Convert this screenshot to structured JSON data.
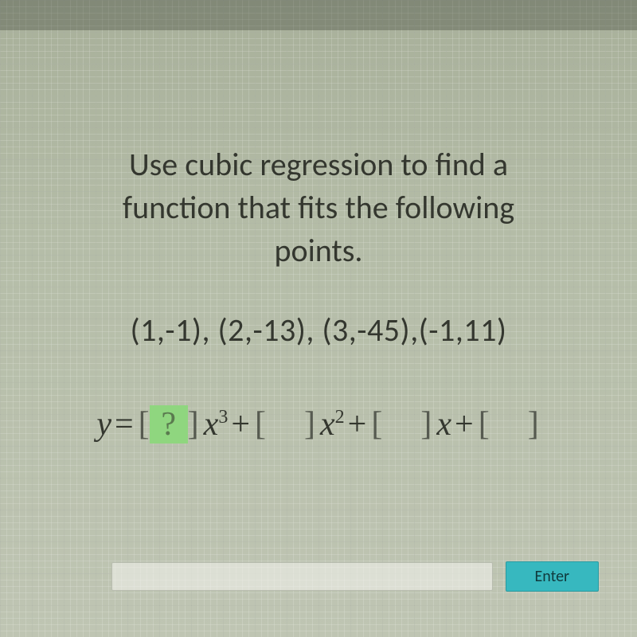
{
  "prompt": {
    "line1": "Use cubic regression to find a",
    "line2": "function that fits the following",
    "line3": "points."
  },
  "points_text": "(1,-1), (2,-13), (3,-45),(-1,11)",
  "equation": {
    "y": "y",
    "eq": " = ",
    "plus": " + ",
    "x": "x",
    "lbracket": "[",
    "rbracket": "]",
    "blank_q": " ? ",
    "blank_empty": "    ",
    "exp3": "3",
    "exp2": "2"
  },
  "enter_label": "Enter",
  "colors": {
    "background_top": "#a8b09a",
    "background_bottom": "#bfc5b3",
    "text": "#34372f",
    "blank_bg": "#b8bdb0",
    "blank_active_bg": "#8fd67f",
    "enter_btn_bg": "#37b8bf",
    "enter_btn_text": "#103a3d",
    "grid_line": "rgba(80,90,70,0.18)"
  }
}
